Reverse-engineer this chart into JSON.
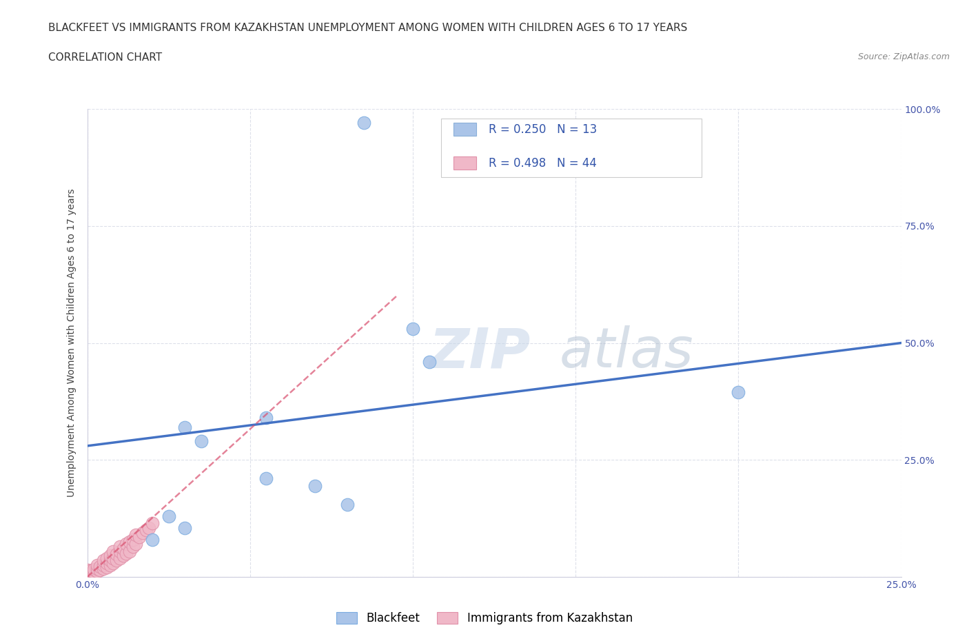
{
  "title_line1": "BLACKFEET VS IMMIGRANTS FROM KAZAKHSTAN UNEMPLOYMENT AMONG WOMEN WITH CHILDREN AGES 6 TO 17 YEARS",
  "title_line2": "CORRELATION CHART",
  "source": "Source: ZipAtlas.com",
  "ylabel": "Unemployment Among Women with Children Ages 6 to 17 years",
  "watermark_zip": "ZIP",
  "watermark_atlas": "atlas",
  "blue_x": [
    0.085,
    0.1,
    0.105,
    0.03,
    0.035,
    0.055,
    0.055,
    0.07,
    0.08,
    0.2,
    0.03,
    0.02,
    0.025
  ],
  "blue_y": [
    0.97,
    0.53,
    0.46,
    0.32,
    0.29,
    0.34,
    0.21,
    0.195,
    0.155,
    0.395,
    0.105,
    0.08,
    0.13
  ],
  "pink_x": [
    0.0,
    0.0,
    0.0,
    0.001,
    0.001,
    0.002,
    0.002,
    0.003,
    0.003,
    0.003,
    0.004,
    0.004,
    0.005,
    0.005,
    0.005,
    0.006,
    0.006,
    0.006,
    0.007,
    0.007,
    0.007,
    0.008,
    0.008,
    0.008,
    0.009,
    0.009,
    0.01,
    0.01,
    0.01,
    0.011,
    0.011,
    0.012,
    0.012,
    0.013,
    0.013,
    0.014,
    0.014,
    0.015,
    0.015,
    0.016,
    0.017,
    0.018,
    0.019,
    0.02
  ],
  "pink_y": [
    0.005,
    0.01,
    0.015,
    0.008,
    0.013,
    0.01,
    0.016,
    0.012,
    0.018,
    0.025,
    0.015,
    0.022,
    0.018,
    0.025,
    0.035,
    0.02,
    0.03,
    0.04,
    0.025,
    0.035,
    0.045,
    0.03,
    0.04,
    0.055,
    0.035,
    0.048,
    0.04,
    0.055,
    0.065,
    0.045,
    0.06,
    0.05,
    0.07,
    0.055,
    0.075,
    0.065,
    0.08,
    0.07,
    0.09,
    0.085,
    0.095,
    0.1,
    0.105,
    0.115
  ],
  "blue_color": "#aac4e8",
  "pink_color": "#f0b8c8",
  "blue_line_color": "#4472c4",
  "pink_line_color": "#d94f6e",
  "blue_line_y0": 0.28,
  "blue_line_y1": 0.5,
  "pink_line_x0": 0.0,
  "pink_line_y0": 0.0,
  "pink_line_x1": 0.095,
  "pink_line_y1": 0.6,
  "R_blue": 0.25,
  "N_blue": 13,
  "R_pink": 0.498,
  "N_pink": 44,
  "xlim": [
    0.0,
    0.25
  ],
  "ylim": [
    0.0,
    1.0
  ],
  "xticks": [
    0.0,
    0.05,
    0.1,
    0.15,
    0.2,
    0.25
  ],
  "xticklabels": [
    "0.0%",
    "",
    "",
    "",
    "",
    "25.0%"
  ],
  "yticks": [
    0.0,
    0.25,
    0.5,
    0.75,
    1.0
  ],
  "yticklabels": [
    "",
    "25.0%",
    "50.0%",
    "75.0%",
    "100.0%"
  ],
  "title_fontsize": 11,
  "subtitle_fontsize": 11,
  "axis_label_fontsize": 10,
  "tick_fontsize": 10,
  "legend_fontsize": 13,
  "source_fontsize": 9,
  "background_color": "#ffffff",
  "grid_color": "#dde0ea"
}
